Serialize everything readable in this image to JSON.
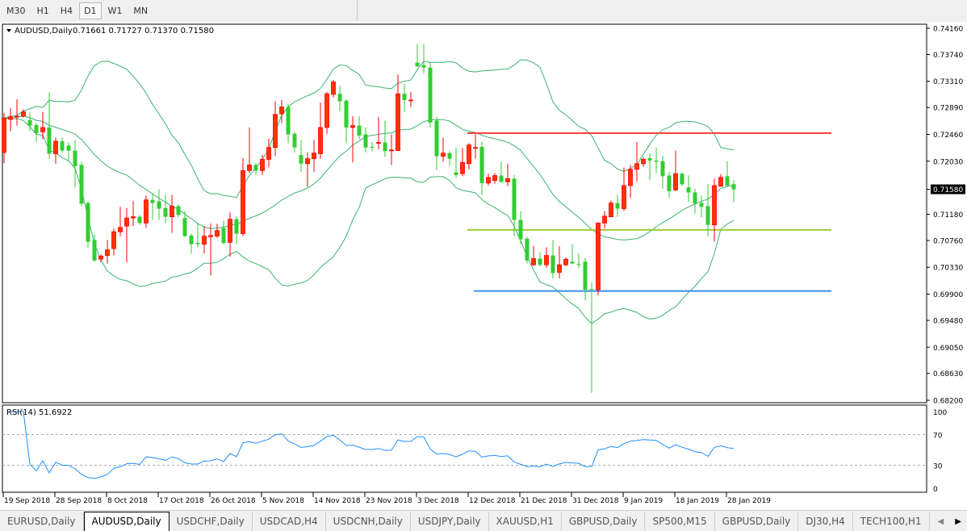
{
  "toolbar": {
    "timeframes": [
      "M30",
      "H1",
      "H4",
      "D1",
      "W1",
      "MN"
    ],
    "active": "D1"
  },
  "chart": {
    "symbol_label": "AUDUSD,Daily",
    "ohlc_label": "0.71661 0.71727 0.71370 0.71580",
    "current_price": "0.71580",
    "colors": {
      "bull": "#ff3300",
      "bear": "#32cd32",
      "bands": "#3cb371",
      "rsi": "#1e90ff",
      "current_bg": "#000000"
    }
  },
  "chart_data": {
    "type": "candlestick",
    "ylim": [
      0.682,
      0.7416
    ],
    "price_ticks": [
      "0.74160",
      "0.73740",
      "0.73310",
      "0.72890",
      "0.72460",
      "0.72030",
      "0.71580",
      "0.71180",
      "0.70760",
      "0.70330",
      "0.69900",
      "0.69480",
      "0.69050",
      "0.68630",
      "0.68200"
    ],
    "date_ticks": [
      "19 Sep 2018",
      "28 Sep 2018",
      "8 Oct 2018",
      "17 Oct 2018",
      "26 Oct 2018",
      "5 Nov 2018",
      "14 Nov 2018",
      "23 Nov 2018",
      "3 Dec 2018",
      "12 Dec 2018",
      "21 Dec 2018",
      "31 Dec 2018",
      "9 Jan 2019",
      "18 Jan 2019",
      "28 Jan 2019"
    ],
    "date_tick_every_bars": 8,
    "indicator": "Bollinger Bands (20, 2)",
    "candles": [
      [
        0.7217,
        0.728,
        0.72,
        0.7272
      ],
      [
        0.727,
        0.7288,
        0.7251,
        0.7274
      ],
      [
        0.7274,
        0.7302,
        0.726,
        0.7275
      ],
      [
        0.7275,
        0.7286,
        0.7273,
        0.7282
      ],
      [
        0.7269,
        0.7281,
        0.7251,
        0.726
      ],
      [
        0.7261,
        0.7264,
        0.7234,
        0.7248
      ],
      [
        0.725,
        0.7282,
        0.7238,
        0.7257
      ],
      [
        0.7257,
        0.7313,
        0.7207,
        0.7215
      ],
      [
        0.7215,
        0.7241,
        0.7199,
        0.7235
      ],
      [
        0.7235,
        0.7241,
        0.7216,
        0.722
      ],
      [
        0.7228,
        0.7233,
        0.7204,
        0.722
      ],
      [
        0.722,
        0.7237,
        0.7161,
        0.7195
      ],
      [
        0.7197,
        0.7202,
        0.7131,
        0.7135
      ],
      [
        0.7136,
        0.7139,
        0.7064,
        0.7074
      ],
      [
        0.7077,
        0.7086,
        0.7042,
        0.7044
      ],
      [
        0.7046,
        0.7054,
        0.7041,
        0.7051
      ],
      [
        0.7052,
        0.7077,
        0.7039,
        0.7061
      ],
      [
        0.7063,
        0.7095,
        0.7052,
        0.709
      ],
      [
        0.709,
        0.713,
        0.7083,
        0.7097
      ],
      [
        0.7099,
        0.7128,
        0.7041,
        0.7112
      ],
      [
        0.7112,
        0.7139,
        0.7099,
        0.7114
      ],
      [
        0.7114,
        0.7117,
        0.7101,
        0.7104
      ],
      [
        0.7104,
        0.7148,
        0.7096,
        0.7141
      ],
      [
        0.7141,
        0.715,
        0.7109,
        0.7136
      ],
      [
        0.7139,
        0.7158,
        0.7109,
        0.7127
      ],
      [
        0.7128,
        0.715,
        0.7104,
        0.7114
      ],
      [
        0.7114,
        0.7149,
        0.7088,
        0.7131
      ],
      [
        0.7131,
        0.7134,
        0.7113,
        0.7117
      ],
      [
        0.7112,
        0.7123,
        0.7082,
        0.7083
      ],
      [
        0.7084,
        0.7087,
        0.7055,
        0.707
      ],
      [
        0.7072,
        0.7104,
        0.7065,
        0.707
      ],
      [
        0.707,
        0.7099,
        0.7055,
        0.7083
      ],
      [
        0.7082,
        0.7103,
        0.702,
        0.7084
      ],
      [
        0.7083,
        0.7103,
        0.708,
        0.7092
      ],
      [
        0.7096,
        0.7108,
        0.707,
        0.7072
      ],
      [
        0.7073,
        0.7121,
        0.705,
        0.711
      ],
      [
        0.711,
        0.7115,
        0.707,
        0.7087
      ],
      [
        0.7087,
        0.7208,
        0.7083,
        0.7188
      ],
      [
        0.7188,
        0.7257,
        0.7184,
        0.7197
      ],
      [
        0.7197,
        0.72,
        0.7181,
        0.7188
      ],
      [
        0.7188,
        0.7213,
        0.7181,
        0.7206
      ],
      [
        0.7206,
        0.7239,
        0.7193,
        0.7225
      ],
      [
        0.7225,
        0.7299,
        0.7211,
        0.7278
      ],
      [
        0.7279,
        0.7301,
        0.7264,
        0.729
      ],
      [
        0.729,
        0.7295,
        0.7232,
        0.7246
      ],
      [
        0.7247,
        0.725,
        0.7217,
        0.7225
      ],
      [
        0.7213,
        0.7237,
        0.7186,
        0.7199
      ],
      [
        0.7199,
        0.7217,
        0.7162,
        0.7207
      ],
      [
        0.7207,
        0.7237,
        0.7186,
        0.7216
      ],
      [
        0.7215,
        0.7297,
        0.7207,
        0.7257
      ],
      [
        0.7257,
        0.7314,
        0.7247,
        0.7311
      ],
      [
        0.731,
        0.7333,
        0.7305,
        0.733
      ],
      [
        0.7311,
        0.7324,
        0.7283,
        0.7299
      ],
      [
        0.73,
        0.7302,
        0.7232,
        0.7257
      ],
      [
        0.7257,
        0.7275,
        0.7201,
        0.726
      ],
      [
        0.726,
        0.7275,
        0.7238,
        0.7244
      ],
      [
        0.7246,
        0.7257,
        0.7217,
        0.7225
      ],
      [
        0.7226,
        0.7234,
        0.7219,
        0.7225
      ],
      [
        0.7233,
        0.7274,
        0.7222,
        0.7233
      ],
      [
        0.7233,
        0.7268,
        0.721,
        0.7219
      ],
      [
        0.722,
        0.7246,
        0.7197,
        0.7221
      ],
      [
        0.722,
        0.7342,
        0.7219,
        0.7311
      ],
      [
        0.7311,
        0.7327,
        0.7282,
        0.7301
      ],
      [
        0.7301,
        0.7314,
        0.729,
        0.7301
      ],
      [
        0.7361,
        0.7391,
        0.7354,
        0.7355
      ],
      [
        0.7357,
        0.7391,
        0.7344,
        0.7353
      ],
      [
        0.7353,
        0.7361,
        0.7257,
        0.7265
      ],
      [
        0.7268,
        0.7274,
        0.7189,
        0.7211
      ],
      [
        0.7211,
        0.7241,
        0.7202,
        0.7216
      ],
      [
        0.7216,
        0.7219,
        0.7195,
        0.7207
      ],
      [
        0.7185,
        0.7225,
        0.7176,
        0.7181
      ],
      [
        0.7183,
        0.7224,
        0.7179,
        0.7201
      ],
      [
        0.7199,
        0.7232,
        0.719,
        0.7229
      ],
      [
        0.7225,
        0.7246,
        0.7207,
        0.7225
      ],
      [
        0.7226,
        0.7234,
        0.7149,
        0.7168
      ],
      [
        0.7168,
        0.7183,
        0.7164,
        0.7177
      ],
      [
        0.7172,
        0.7184,
        0.7167,
        0.718
      ],
      [
        0.718,
        0.7202,
        0.7168,
        0.717
      ],
      [
        0.717,
        0.7199,
        0.7163,
        0.7175
      ],
      [
        0.7175,
        0.7181,
        0.7083,
        0.7109
      ],
      [
        0.7109,
        0.7123,
        0.707,
        0.7078
      ],
      [
        0.7079,
        0.7082,
        0.7039,
        0.7044
      ],
      [
        0.7037,
        0.7067,
        0.7035,
        0.7047
      ],
      [
        0.7047,
        0.7057,
        0.7034,
        0.7037
      ],
      [
        0.7037,
        0.7065,
        0.7032,
        0.7052
      ],
      [
        0.7052,
        0.7077,
        0.7015,
        0.7024
      ],
      [
        0.7025,
        0.7067,
        0.7015,
        0.7037
      ],
      [
        0.7037,
        0.7049,
        0.7035,
        0.7046
      ],
      [
        0.7042,
        0.707,
        0.7038,
        0.7039
      ],
      [
        0.7038,
        0.7055,
        0.7032,
        0.7037
      ],
      [
        0.7042,
        0.7048,
        0.698,
        0.6997
      ],
      [
        0.6998,
        0.7009,
        0.6832,
        0.6997
      ],
      [
        0.6997,
        0.7104,
        0.6988,
        0.7104
      ],
      [
        0.7104,
        0.7123,
        0.7095,
        0.7115
      ],
      [
        0.7114,
        0.714,
        0.7113,
        0.7136
      ],
      [
        0.7136,
        0.7149,
        0.7114,
        0.7127
      ],
      [
        0.7127,
        0.7193,
        0.7123,
        0.7164
      ],
      [
        0.7164,
        0.7197,
        0.7144,
        0.719
      ],
      [
        0.719,
        0.7234,
        0.717,
        0.7199
      ],
      [
        0.7199,
        0.7209,
        0.7194,
        0.7206
      ],
      [
        0.7208,
        0.7216,
        0.7173,
        0.7204
      ],
      [
        0.7204,
        0.7225,
        0.7184,
        0.7202
      ],
      [
        0.7203,
        0.7212,
        0.7159,
        0.7179
      ],
      [
        0.718,
        0.7186,
        0.7144,
        0.7155
      ],
      [
        0.7157,
        0.722,
        0.7155,
        0.7183
      ],
      [
        0.7183,
        0.7185,
        0.7163,
        0.7166
      ],
      [
        0.7161,
        0.718,
        0.7137,
        0.7153
      ],
      [
        0.7153,
        0.7159,
        0.7119,
        0.7135
      ],
      [
        0.7136,
        0.7148,
        0.7113,
        0.713
      ],
      [
        0.7131,
        0.7166,
        0.7082,
        0.7101
      ],
      [
        0.7101,
        0.7175,
        0.7074,
        0.7164
      ],
      [
        0.7163,
        0.7182,
        0.7162,
        0.7177
      ],
      [
        0.7179,
        0.7203,
        0.7162,
        0.7164
      ],
      [
        0.71661,
        0.71727,
        0.7137,
        0.7158
      ]
    ],
    "horizontal_lines": [
      {
        "price": 0.7248,
        "color": "#ff4040",
        "from": "12 Dec 2018"
      },
      {
        "price": 0.7093,
        "color": "#9acd32",
        "from": "12 Dec 2018"
      },
      {
        "price": 0.6995,
        "color": "#3a8ee6",
        "from": "13 Dec 2018"
      }
    ],
    "rsi": {
      "label": "RSI(14) 51.6922",
      "period": 14,
      "levels": [
        70,
        30
      ],
      "ticks": [
        "100",
        "70",
        "30",
        "0"
      ],
      "ylim": [
        0,
        100
      ]
    }
  },
  "tabs": [
    {
      "label": "EURUSD,Daily"
    },
    {
      "label": "AUDUSD,Daily",
      "active": true
    },
    {
      "label": "USDCHF,Daily"
    },
    {
      "label": "USDCAD,H4"
    },
    {
      "label": "USDCNH,Daily"
    },
    {
      "label": "USDJPY,Daily"
    },
    {
      "label": "XAUUSD,H1"
    },
    {
      "label": "GBPUSD,Daily"
    },
    {
      "label": "SP500,M15"
    },
    {
      "label": "GBPUSD,Daily"
    },
    {
      "label": "DJ30,H4"
    },
    {
      "label": "TECH100,H1"
    }
  ]
}
